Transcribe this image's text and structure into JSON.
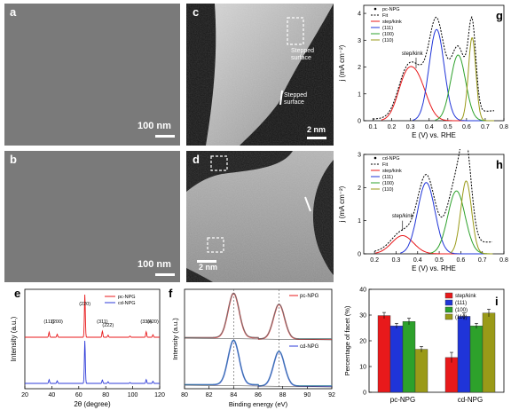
{
  "panels": {
    "a": {
      "label": "a",
      "scale": "100 nm"
    },
    "b": {
      "label": "b",
      "scale": "100 nm"
    },
    "c": {
      "label": "c",
      "scale": "2 nm",
      "ann1": "Stepped surface",
      "ann2": "Stepped surface"
    },
    "d": {
      "label": "d",
      "scale": "2 nm"
    },
    "e": {
      "label": "e"
    },
    "f": {
      "label": "f"
    },
    "g": {
      "label": "g"
    },
    "h": {
      "label": "h"
    },
    "i": {
      "label": "i"
    }
  },
  "colors": {
    "step": "#e8191b",
    "f111": "#1f34d8",
    "f100": "#2da12b",
    "f110": "#9a9a18",
    "pc": "#e8191b",
    "cd": "#2e3bd8",
    "data": "#000000"
  },
  "chart_data": [
    {
      "id": "g",
      "type": "line",
      "ylabel": "j (mA cm⁻²)",
      "xlabel": "E (V) vs. RHE",
      "xlim": [
        0.05,
        0.8
      ],
      "ylim": [
        0,
        4.3
      ],
      "xticks": [
        "0.1",
        "0.2",
        "0.3",
        "0.4",
        "0.5",
        "0.6",
        "0.7",
        "0.8"
      ],
      "yticks": [
        "0",
        "1",
        "2",
        "3",
        "4"
      ],
      "legend": [
        "pc-NPG",
        "Fit",
        "step/kink",
        "(111)",
        "(100)",
        "(110)"
      ],
      "annotation": "step/kink",
      "series": [
        {
          "name": "step/kink",
          "peaks": [
            [
              0.27,
              1.25,
              0.045
            ],
            [
              0.34,
              1.4,
              0.05
            ]
          ]
        },
        {
          "name": "(111)",
          "peaks": [
            [
              0.44,
              3.4,
              0.04
            ]
          ]
        },
        {
          "name": "(100)",
          "peaks": [
            [
              0.555,
              2.45,
              0.04
            ]
          ]
        },
        {
          "name": "(110)",
          "peaks": [
            [
              0.63,
              3.1,
              0.02
            ]
          ]
        }
      ]
    },
    {
      "id": "h",
      "type": "line",
      "ylabel": "j (mA cm⁻²)",
      "xlabel": "E (V) vs. RHE",
      "xlim": [
        0.15,
        0.8
      ],
      "ylim": [
        0,
        3
      ],
      "xticks": [
        "0.2",
        "0.3",
        "0.4",
        "0.5",
        "0.6",
        "0.7",
        "0.8"
      ],
      "yticks": [
        "0",
        "1",
        "2",
        "3"
      ],
      "legend": [
        "cd-NPG",
        "Fit",
        "step/kink",
        "(111)",
        "(100)",
        "(110)"
      ],
      "annotation": "step/kink",
      "series": [
        {
          "name": "step/kink",
          "peaks": [
            [
              0.33,
              0.55,
              0.05
            ]
          ]
        },
        {
          "name": "(111)",
          "peaks": [
            [
              0.44,
              2.15,
              0.04
            ]
          ]
        },
        {
          "name": "(100)",
          "peaks": [
            [
              0.58,
              1.9,
              0.04
            ]
          ]
        },
        {
          "name": "(110)",
          "peaks": [
            [
              0.625,
              2.2,
              0.025
            ]
          ]
        }
      ]
    },
    {
      "id": "e",
      "type": "line",
      "xlabel": "2θ (degree)",
      "ylabel": "Intensity (a.u.)",
      "xlim": [
        20,
        120
      ],
      "xticks": [
        "20",
        "40",
        "60",
        "80",
        "100",
        "120"
      ],
      "legend": [
        "pc-NPG",
        "cd-NPG"
      ],
      "peak_labels": [
        {
          "x": 38,
          "text": "(111)"
        },
        {
          "x": 44,
          "text": "(200)"
        },
        {
          "x": 64.5,
          "text": "(220)"
        },
        {
          "x": 77.5,
          "text": "(311)"
        },
        {
          "x": 81.7,
          "text": "(222)"
        },
        {
          "x": 110,
          "text": "(331)"
        },
        {
          "x": 115,
          "text": "(420)"
        }
      ],
      "peaks_pc": [
        [
          38,
          0.12
        ],
        [
          44,
          0.07
        ],
        [
          64.5,
          1.0
        ],
        [
          77.5,
          0.14
        ],
        [
          81.7,
          0.05
        ],
        [
          98,
          0.03
        ],
        [
          110,
          0.13
        ],
        [
          115,
          0.06
        ]
      ],
      "peaks_cd": [
        [
          38,
          0.09
        ],
        [
          44,
          0.06
        ],
        [
          64.5,
          1.0
        ],
        [
          77.5,
          0.08
        ],
        [
          81.7,
          0.04
        ],
        [
          98,
          0.02
        ],
        [
          110,
          0.09
        ],
        [
          115,
          0.05
        ]
      ]
    },
    {
      "id": "f",
      "type": "line",
      "xlabel": "Binding energy (eV)",
      "ylabel": "Intensity (a.u.)",
      "xlim": [
        80,
        92
      ],
      "xticks": [
        "80",
        "82",
        "84",
        "86",
        "88",
        "90",
        "92"
      ],
      "legend": [
        "pc-NPG",
        "cd-NPG"
      ],
      "peaks": [
        [
          84.0,
          1.0
        ],
        [
          87.7,
          0.78
        ]
      ]
    },
    {
      "id": "i",
      "type": "bar",
      "ylabel": "Percentage of facet (%)",
      "categories": [
        "pc-NPG",
        "cd-NPG"
      ],
      "ylim": [
        0,
        40
      ],
      "yticks": [
        "0",
        "10",
        "20",
        "30",
        "40"
      ],
      "series": [
        {
          "name": "step/kink",
          "values": [
            29.8,
            13.5
          ],
          "err": [
            1.2,
            2.0
          ]
        },
        {
          "name": "(111)",
          "values": [
            25.8,
            29.5
          ],
          "err": [
            1.0,
            1.3
          ]
        },
        {
          "name": "(100)",
          "values": [
            27.5,
            25.8
          ],
          "err": [
            1.3,
            1.0
          ]
        },
        {
          "name": "(110)",
          "values": [
            16.7,
            30.8
          ],
          "err": [
            1.1,
            1.5
          ]
        }
      ]
    }
  ]
}
